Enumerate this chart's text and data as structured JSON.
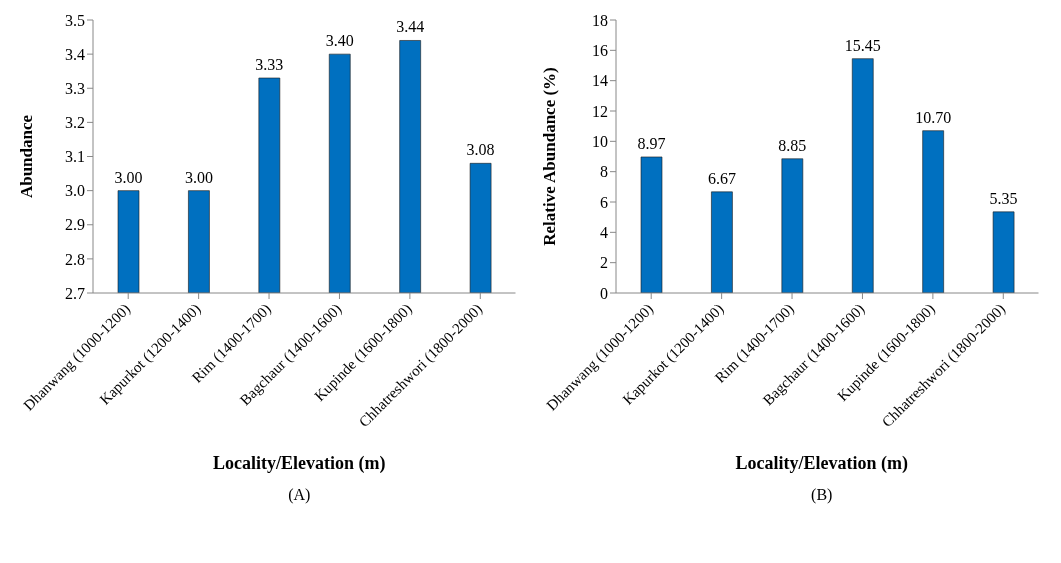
{
  "chart_data": [
    {
      "type": "bar",
      "ylabel": "Abundance",
      "xlabel": "Locality/Elevation (m)",
      "categories": [
        "Dhanwang (1000-1200)",
        "Kapurkot (1200-1400)",
        "Rim (1400-1700)",
        "Bagchaur (1400-1600)",
        "Kupinde (1600-1800)",
        "Chhatreshwori (1800-2000)"
      ],
      "values": [
        3.0,
        3.0,
        3.33,
        3.4,
        3.44,
        3.08
      ],
      "value_labels": [
        "3.00",
        "3.00",
        "3.33",
        "3.40",
        "3.44",
        "3.08"
      ],
      "color": "#0070c0",
      "ylim": [
        2.7,
        3.5
      ],
      "yticks": [
        {
          "value": 2.7,
          "label": "2.7"
        },
        {
          "value": 2.8,
          "label": "2.8"
        },
        {
          "value": 2.9,
          "label": "2.9"
        },
        {
          "value": 3.0,
          "label": "3.0"
        },
        {
          "value": 3.1,
          "label": "3.1"
        },
        {
          "value": 3.2,
          "label": "3.2"
        },
        {
          "value": 3.3,
          "label": "3.3"
        },
        {
          "value": 3.4,
          "label": "3.4"
        },
        {
          "value": 3.5,
          "label": "3.5"
        }
      ],
      "annotations": [
        "(A)"
      ]
    },
    {
      "type": "bar",
      "ylabel": "Relative Abundance (%)",
      "xlabel": "Locality/Elevation (m)",
      "categories": [
        "Dhanwang (1000-1200)",
        "Kapurkot (1200-1400)",
        "Rim (1400-1700)",
        "Bagchaur (1400-1600)",
        "Kupinde (1600-1800)",
        "Chhatreshwori (1800-2000)"
      ],
      "values": [
        8.97,
        6.67,
        8.85,
        15.45,
        10.7,
        5.35
      ],
      "value_labels": [
        "8.97",
        "6.67",
        "8.85",
        "15.45",
        "10.70",
        "5.35"
      ],
      "color": "#0070c0",
      "ylim": [
        0,
        18
      ],
      "yticks": [
        0,
        2,
        4,
        6,
        8,
        10,
        12,
        14,
        16,
        18
      ],
      "annotations": [
        "(B)"
      ]
    }
  ]
}
